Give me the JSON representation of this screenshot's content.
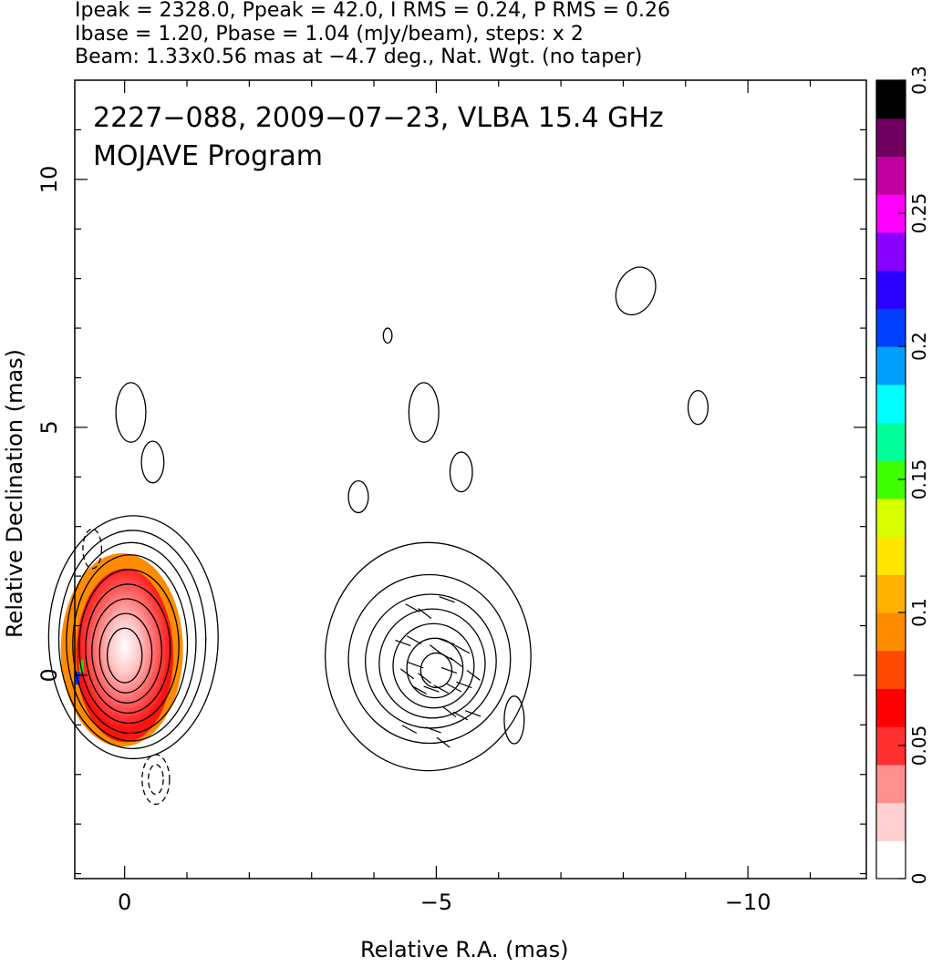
{
  "header": {
    "line1": "Ipeak = 2328.0, Ppeak = 42.0, I RMS = 0.24, P RMS = 0.26",
    "line2": "Ibase = 1.20, Pbase = 1.04 (mJy/beam), steps: x 2",
    "line3": "Beam: 1.33x0.56 mas at −4.7 deg., Nat. Wgt. (no taper)"
  },
  "chart_data": {
    "type": "heatmap",
    "title": "2227−088, 2009−07−23, VLBA 15.4 GHz",
    "subtitle": "MOJAVE Program",
    "xlabel": "Relative R.A. (mas)",
    "ylabel": "Relative Declination (mas)",
    "xlim": [
      0.8,
      -11.9
    ],
    "ylim": [
      -4.1,
      12.0
    ],
    "x_ticks": [
      0,
      -5,
      -10
    ],
    "x_tick_labels": [
      "0",
      "−5",
      "−10"
    ],
    "y_ticks": [
      0,
      5,
      10
    ],
    "y_tick_labels": [
      "0",
      "5",
      "10"
    ],
    "colorbar": {
      "range": [
        0,
        0.3
      ],
      "ticks": [
        0,
        0.05,
        0.1,
        0.15,
        0.2,
        0.25,
        0.3
      ],
      "tick_labels": [
        "0",
        "0.05",
        "0.1",
        "0.15",
        "0.2",
        "0.25",
        "0.3"
      ],
      "colors": [
        "#ffffff",
        "#ffd0d0",
        "#ff9090",
        "#ff3030",
        "#ff0000",
        "#ff4800",
        "#ff8c00",
        "#ffb000",
        "#ffe600",
        "#d8ff00",
        "#40ff00",
        "#00ff9a",
        "#00ffff",
        "#00a0ff",
        "#0040ff",
        "#2a00ff",
        "#8a00ff",
        "#ff00ff",
        "#c000a0",
        "#700060",
        "#000000"
      ]
    },
    "components": [
      {
        "name": "core",
        "x": 0.0,
        "y": 0.4,
        "contour_rx": [
          0.28,
          0.42,
          0.56,
          0.68,
          0.8,
          0.92,
          1.04,
          1.18,
          1.36
        ],
        "contour_ry": [
          0.55,
          0.8,
          1.05,
          1.3,
          1.55,
          1.8,
          2.0,
          2.2,
          2.45
        ],
        "pol_fraction_peak": 0.05
      },
      {
        "name": "jet",
        "x": -5.0,
        "y": 0.1,
        "contour_rx": [
          0.25,
          0.45,
          0.65,
          0.85,
          1.05,
          1.3,
          1.65
        ],
        "contour_ry": [
          0.35,
          0.6,
          0.85,
          1.1,
          1.35,
          1.7,
          2.3
        ]
      }
    ],
    "beam": {
      "major_mas": 1.33,
      "minor_mas": 0.56,
      "pa_deg": -4.7
    }
  }
}
